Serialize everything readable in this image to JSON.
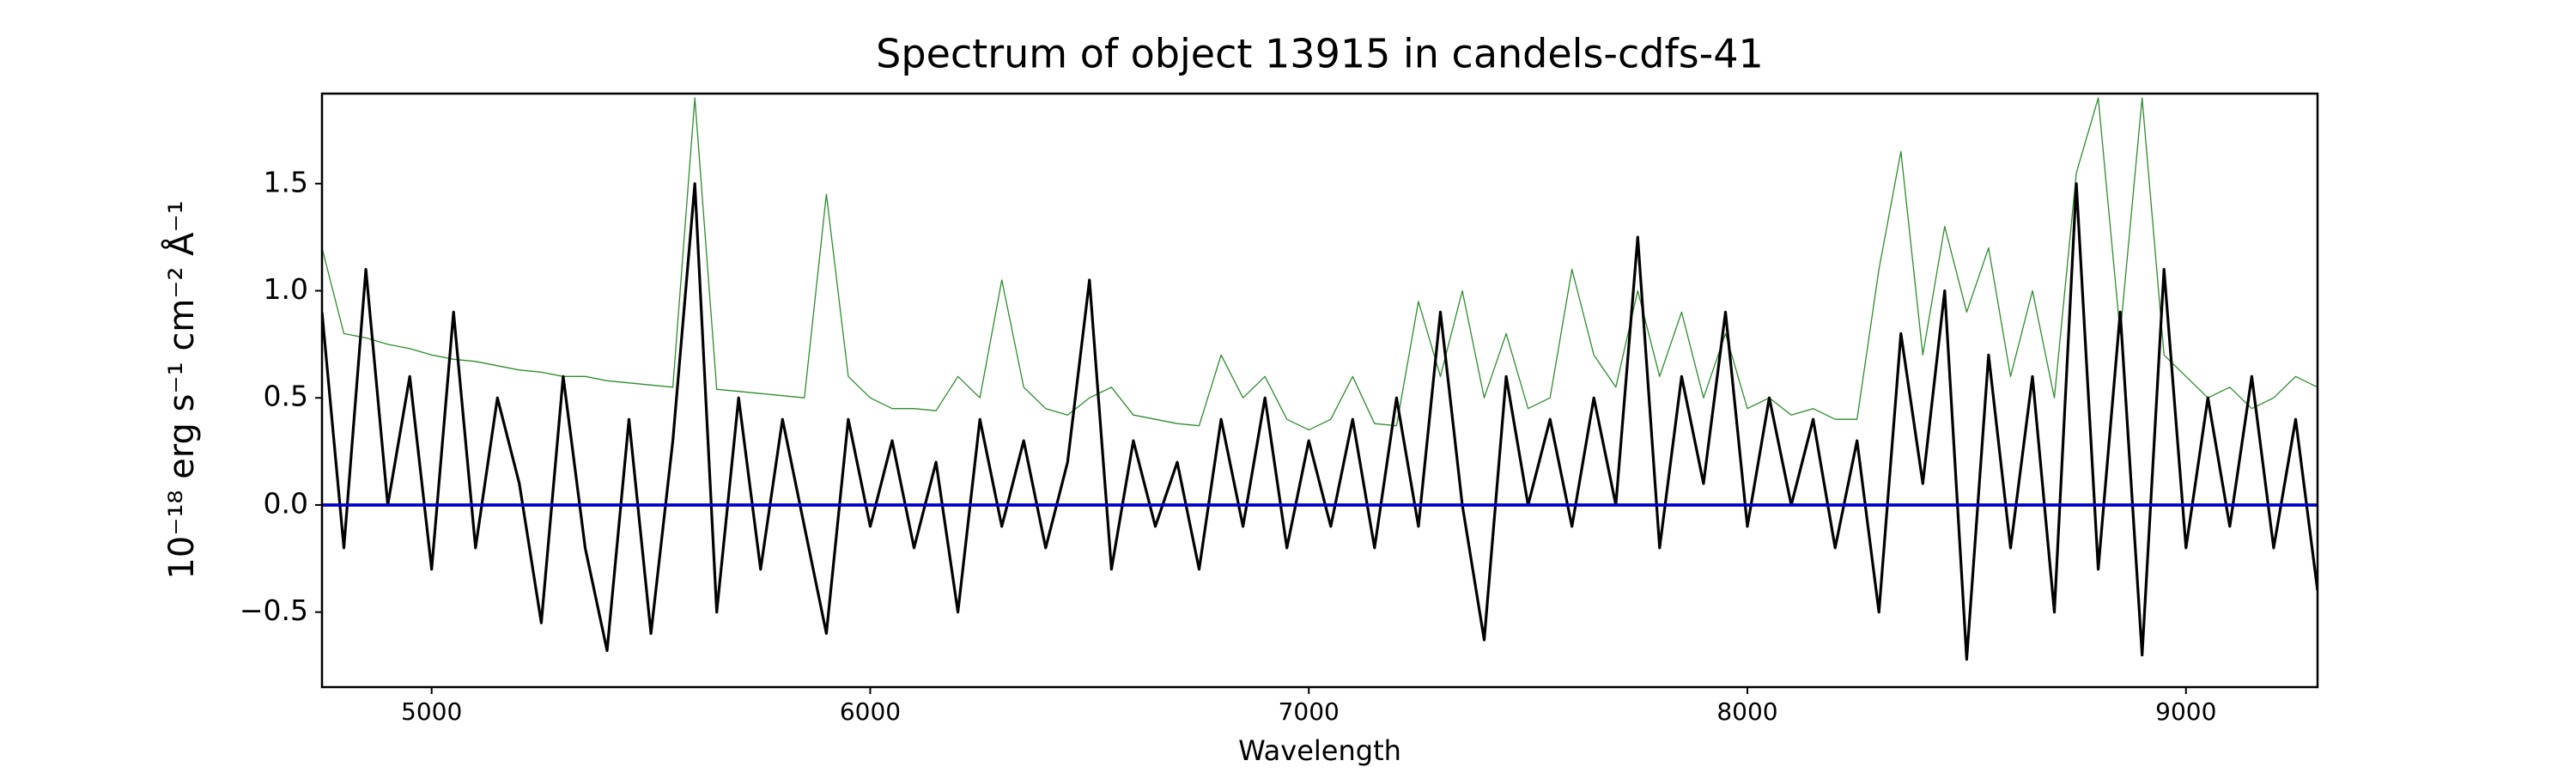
{
  "chart_data": {
    "type": "line",
    "title": "Spectrum of object 13915 in candels-cdfs-41",
    "x_label": "Wavelength",
    "y_label": "10⁻¹⁸ erg s⁻¹ cm⁻² Å⁻¹",
    "x": [
      4750,
      4800,
      4850,
      4900,
      4950,
      5000,
      5050,
      5100,
      5150,
      5200,
      5250,
      5300,
      5350,
      5400,
      5450,
      5500,
      5550,
      5600,
      5650,
      5700,
      5750,
      5800,
      5850,
      5900,
      5950,
      6000,
      6050,
      6100,
      6150,
      6200,
      6250,
      6300,
      6350,
      6400,
      6450,
      6500,
      6550,
      6600,
      6650,
      6700,
      6750,
      6800,
      6850,
      6900,
      6950,
      7000,
      7050,
      7100,
      7150,
      7200,
      7250,
      7300,
      7350,
      7400,
      7450,
      7500,
      7550,
      7600,
      7650,
      7700,
      7750,
      7800,
      7850,
      7900,
      7950,
      8000,
      8050,
      8100,
      8150,
      8200,
      8250,
      8300,
      8350,
      8400,
      8450,
      8500,
      8550,
      8600,
      8650,
      8700,
      8750,
      8800,
      8850,
      8900,
      8950,
      9000,
      9050,
      9100,
      9150,
      9200,
      9250,
      9300
    ],
    "series": [
      {
        "color": "#2e8b2e",
        "values": [
          1.2,
          0.8,
          0.78,
          0.75,
          0.73,
          0.7,
          0.68,
          0.67,
          0.65,
          0.63,
          0.62,
          0.6,
          0.6,
          0.58,
          0.57,
          0.56,
          0.55,
          1.9,
          0.54,
          0.53,
          0.52,
          0.51,
          0.5,
          1.45,
          0.6,
          0.5,
          0.45,
          0.45,
          0.44,
          0.6,
          0.5,
          1.05,
          0.55,
          0.45,
          0.42,
          0.5,
          0.55,
          0.42,
          0.4,
          0.38,
          0.37,
          0.7,
          0.5,
          0.6,
          0.4,
          0.35,
          0.4,
          0.6,
          0.38,
          0.37,
          0.95,
          0.6,
          1.0,
          0.5,
          0.8,
          0.45,
          0.5,
          1.1,
          0.7,
          0.55,
          1.0,
          0.6,
          0.9,
          0.5,
          0.8,
          0.45,
          0.5,
          0.42,
          0.45,
          0.4,
          0.4,
          1.1,
          1.65,
          0.7,
          1.3,
          0.9,
          1.2,
          0.6,
          1.0,
          0.5,
          1.55,
          1.9,
          0.8,
          1.9,
          0.7,
          0.6,
          0.5,
          0.55,
          0.45,
          0.5,
          0.6,
          0.55
        ]
      },
      {
        "color": "#000000",
        "values": [
          0.9,
          -0.2,
          1.1,
          0.0,
          0.6,
          -0.3,
          0.9,
          -0.2,
          0.5,
          0.1,
          -0.55,
          0.6,
          -0.2,
          -0.68,
          0.4,
          -0.6,
          0.3,
          1.5,
          -0.5,
          0.5,
          -0.3,
          0.4,
          -0.1,
          -0.6,
          0.4,
          -0.1,
          0.3,
          -0.2,
          0.2,
          -0.5,
          0.4,
          -0.1,
          0.3,
          -0.2,
          0.2,
          1.05,
          -0.3,
          0.3,
          -0.1,
          0.2,
          -0.3,
          0.4,
          -0.1,
          0.5,
          -0.2,
          0.3,
          -0.1,
          0.4,
          -0.2,
          0.5,
          -0.1,
          0.9,
          0.0,
          -0.63,
          0.6,
          0.0,
          0.4,
          -0.1,
          0.5,
          0.0,
          1.25,
          -0.2,
          0.6,
          0.1,
          0.9,
          -0.1,
          0.5,
          0.0,
          0.4,
          -0.2,
          0.3,
          -0.5,
          0.8,
          0.1,
          1.0,
          -0.72,
          0.7,
          -0.2,
          0.6,
          -0.5,
          1.5,
          -0.3,
          0.9,
          -0.7,
          1.1,
          -0.2,
          0.5,
          -0.1,
          0.6,
          -0.2,
          0.4,
          -0.4
        ]
      },
      {
        "color": "#0000cc",
        "values": [
          0,
          0,
          0,
          0,
          0,
          0,
          0,
          0,
          0,
          0,
          0,
          0,
          0,
          0,
          0,
          0,
          0,
          0,
          0,
          0,
          0,
          0,
          0,
          0,
          0,
          0,
          0,
          0,
          0,
          0,
          0,
          0,
          0,
          0,
          0,
          0,
          0,
          0,
          0,
          0,
          0,
          0,
          0,
          0,
          0,
          0,
          0,
          0,
          0,
          0,
          0,
          0,
          0,
          0,
          0,
          0,
          0,
          0,
          0,
          0,
          0,
          0,
          0,
          0,
          0,
          0,
          0,
          0,
          0,
          0,
          0,
          0,
          0,
          0,
          0,
          0,
          0,
          0,
          0,
          0,
          0,
          0,
          0,
          0,
          0,
          0,
          0,
          0,
          0,
          0,
          0,
          0
        ]
      }
    ],
    "xlim": [
      4750,
      9300
    ],
    "ylim": [
      -0.85,
      1.92
    ],
    "xticks": [
      5000,
      6000,
      7000,
      8000,
      9000
    ],
    "yticks": [
      {
        "value": -0.5,
        "label": "−0.5"
      },
      {
        "value": 0,
        "label": "0.0"
      },
      0.5,
      {
        "value": 1,
        "label": "1.0"
      },
      1.5
    ]
  }
}
